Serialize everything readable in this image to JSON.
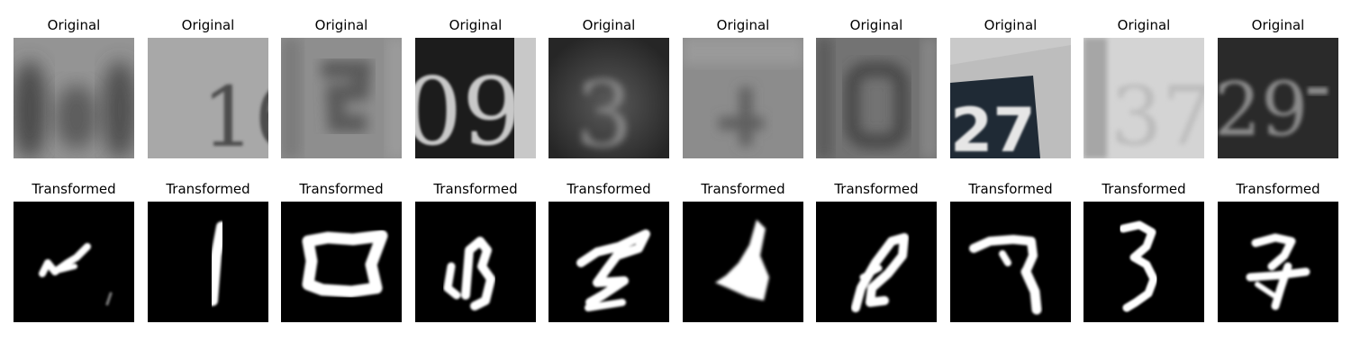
{
  "rows": [
    {
      "id": "original",
      "title": "Original",
      "kind": "svhn-grayscale-crop",
      "images": [
        {
          "digits": "",
          "bg": "#8e8e8e",
          "fg": "#4a4a4a"
        },
        {
          "digits": "16",
          "bg": "#a6a6a6",
          "fg": "#4e4e4e"
        },
        {
          "digits": "",
          "bg": "#8a8a8a",
          "fg": "#5a5a5a"
        },
        {
          "digits": "09",
          "bg": "#c4c4c4",
          "fg": "#1a1a1a"
        },
        {
          "digits": "3",
          "bg": "#4a4a4a",
          "fg": "#7c7c7c"
        },
        {
          "digits": "",
          "bg": "#8a8a8a",
          "fg": "#5e5e5e"
        },
        {
          "digits": "",
          "bg": "#6e6e6e",
          "fg": "#4a4a4a"
        },
        {
          "digits": "27",
          "bg": "#bdbdbd",
          "fg": "#e8e8e8"
        },
        {
          "digits": "37",
          "bg": "#d6d6d6",
          "fg": "#bdbdbd"
        },
        {
          "digits": "29",
          "bg": "#2b2b2b",
          "fg": "#8a8a8a"
        }
      ]
    },
    {
      "id": "transformed",
      "title": "Transformed",
      "kind": "mnist-style-digit",
      "images": [
        {
          "stroke_color": "#ffffff"
        },
        {
          "stroke_color": "#ffffff"
        },
        {
          "stroke_color": "#ffffff"
        },
        {
          "stroke_color": "#ffffff"
        },
        {
          "stroke_color": "#ffffff"
        },
        {
          "stroke_color": "#ffffff"
        },
        {
          "stroke_color": "#ffffff"
        },
        {
          "stroke_color": "#ffffff"
        },
        {
          "stroke_color": "#ffffff"
        },
        {
          "stroke_color": "#ffffff"
        }
      ]
    }
  ]
}
